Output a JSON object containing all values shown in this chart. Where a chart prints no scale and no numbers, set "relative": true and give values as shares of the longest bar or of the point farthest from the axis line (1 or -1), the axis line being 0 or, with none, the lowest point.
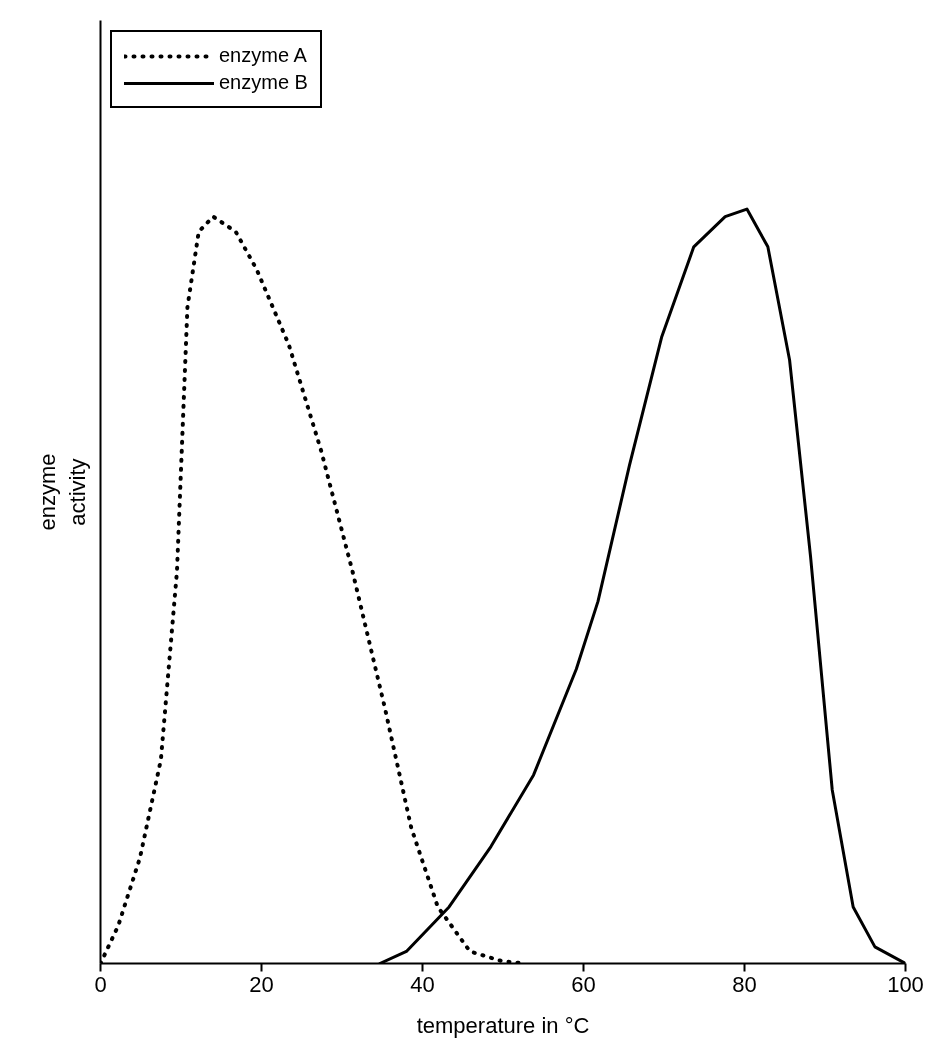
{
  "chart_data": {
    "type": "line",
    "relative": true,
    "xlabel": "temperature in °C",
    "ylabel": "enzyme\nactivity",
    "xlim": [
      0,
      100
    ],
    "xticks": [
      0,
      20,
      40,
      60,
      80,
      100
    ],
    "legend": "top left",
    "grid": false,
    "series": [
      {
        "name": "enzyme A",
        "color": "#000000",
        "line_style": "dotted",
        "x": [
          0,
          2.2,
          4.9,
          7.5,
          9.5,
          10.8,
          12.2,
          14,
          16.8,
          19.4,
          23.4,
          27.4,
          31.3,
          35.3,
          38.6,
          41.9,
          45.9,
          49.9,
          52.9
        ],
        "values": [
          0,
          0.05,
          0.14,
          0.27,
          0.52,
          0.87,
          0.97,
          0.99,
          0.97,
          0.92,
          0.82,
          0.68,
          0.52,
          0.34,
          0.18,
          0.075,
          0.016,
          0.003,
          0
        ]
      },
      {
        "name": "enzyme B",
        "color": "#000000",
        "line_style": "solid",
        "x": [
          34.7,
          38,
          43.3,
          48.5,
          53.8,
          59.1,
          61.8,
          65.7,
          69.7,
          73.7,
          77.6,
          80.3,
          82.9,
          85.6,
          88.2,
          90.9,
          93.5,
          96.2,
          100
        ],
        "values": [
          0,
          0.016,
          0.075,
          0.155,
          0.25,
          0.39,
          0.48,
          0.66,
          0.83,
          0.95,
          0.99,
          1,
          0.95,
          0.8,
          0.54,
          0.23,
          0.075,
          0.022,
          0
        ]
      }
    ]
  }
}
